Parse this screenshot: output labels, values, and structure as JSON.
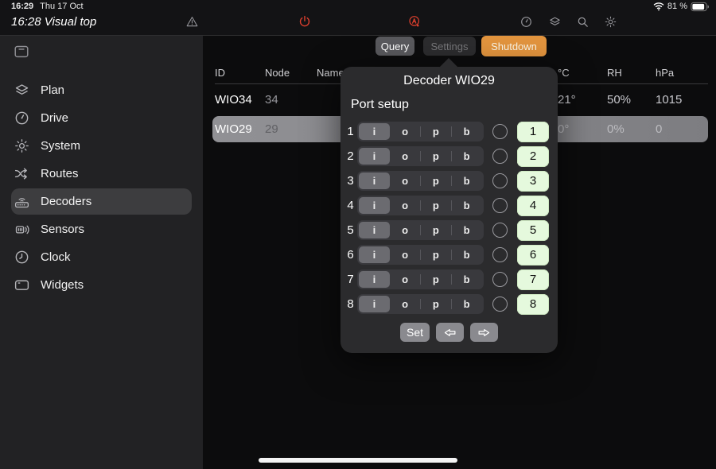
{
  "status_bar": {
    "time": "16:29",
    "date": "Thu 17 Oct",
    "battery_pct": "81 %",
    "icons": {
      "wifi": "wifi-icon",
      "battery": "battery-icon"
    }
  },
  "navbar": {
    "title": "16:28 Visual top",
    "icons": {
      "warning": "warning-icon",
      "power": "power-icon",
      "auto": "auto-mode-icon",
      "dashboard": "gauge-icon",
      "layers": "layers-icon",
      "search": "search-icon",
      "settings": "gear-icon"
    }
  },
  "toolbar": {
    "query_label": "Query",
    "settings_label": "Settings",
    "shutdown_label": "Shutdown"
  },
  "sidebar": {
    "toggle_icon": "sidebar-toggle-icon",
    "items": [
      {
        "label": "Plan",
        "icon": "layers-icon",
        "selected": false
      },
      {
        "label": "Drive",
        "icon": "gauge-icon",
        "selected": false
      },
      {
        "label": "System",
        "icon": "gear-icon",
        "selected": false
      },
      {
        "label": "Routes",
        "icon": "shuffle-icon",
        "selected": false
      },
      {
        "label": "Decoders",
        "icon": "router-icon",
        "selected": true
      },
      {
        "label": "Sensors",
        "icon": "sensor-icon",
        "selected": false
      },
      {
        "label": "Clock",
        "icon": "clock-icon",
        "selected": false
      },
      {
        "label": "Widgets",
        "icon": "widgets-icon",
        "selected": false
      }
    ]
  },
  "table": {
    "headers": {
      "id": "ID",
      "node": "Node",
      "name": "Name",
      "temp": "°C",
      "rh": "RH",
      "hpa": "hPa"
    },
    "rows": [
      {
        "id": "WIO34",
        "node": "34",
        "name": "",
        "temp": "21°",
        "rh": "50%",
        "hpa": "1015",
        "selected": false
      },
      {
        "id": "WIO29",
        "node": "29",
        "name": "",
        "temp": "0°",
        "rh": "0%",
        "hpa": "0",
        "selected": true
      }
    ]
  },
  "popover": {
    "title": "Decoder WIO29",
    "section_title": "Port setup",
    "modes": [
      "i",
      "o",
      "p",
      "b"
    ],
    "selected_mode": "i",
    "ports": [
      {
        "num": "1"
      },
      {
        "num": "2"
      },
      {
        "num": "3"
      },
      {
        "num": "4"
      },
      {
        "num": "5"
      },
      {
        "num": "6"
      },
      {
        "num": "7"
      },
      {
        "num": "8"
      }
    ],
    "set_label": "Set",
    "arrow_icons": {
      "left": "arrow-left-icon",
      "right": "arrow-right-icon"
    }
  },
  "colors": {
    "accent_orange": "#e2943e",
    "alert_red": "#e0402e",
    "port_green": "#e5f9dd",
    "selected_row_gray": "#8a8a8e"
  }
}
